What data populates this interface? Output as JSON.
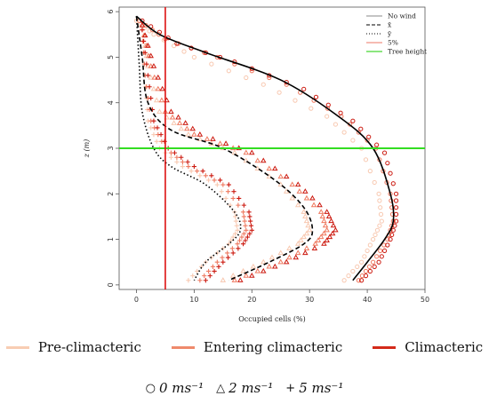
{
  "chart_data": {
    "type": "line",
    "xlabel": "Occupied cells (%)",
    "ylabel": "z (m)",
    "xlim": [
      -3,
      50
    ],
    "ylim": [
      -0.1,
      6.1
    ],
    "xticks": [
      "0",
      "10",
      "20",
      "30",
      "40",
      "50"
    ],
    "yticks": [
      "0",
      "1",
      "2",
      "3",
      "4",
      "5",
      "6"
    ],
    "reference_lines": [
      {
        "orientation": "horizontal",
        "value": 3,
        "label": "Tree height",
        "color": "#33dd22"
      },
      {
        "orientation": "vertical",
        "value": 5,
        "label": "5%",
        "color": "#dd1111"
      }
    ],
    "legend": [
      {
        "label": "No wind",
        "style": "solid",
        "color": "#888888"
      },
      {
        "label": "x̄",
        "style": "dashed",
        "color": "#000000"
      },
      {
        "label": "ȳ",
        "style": "dotted",
        "color": "#000000"
      },
      {
        "label": "5%",
        "style": "solid",
        "color": "#ee7766"
      },
      {
        "label": "Tree height",
        "style": "solid",
        "color": "#66dd55"
      }
    ],
    "legend_position": "top-right",
    "series": [
      {
        "wind": "0",
        "stage": "mean",
        "style": "solid",
        "color": "#000000",
        "x": [
          0,
          4,
          12,
          25,
          35,
          41,
          44,
          44.5,
          43,
          40,
          37.5
        ],
        "y": [
          5.9,
          5.5,
          5.1,
          4.5,
          3.7,
          3.0,
          2.0,
          1.4,
          1.0,
          0.5,
          0.1
        ]
      },
      {
        "wind": "2",
        "stage": "mean",
        "style": "dashed",
        "color": "#000000",
        "x": [
          0,
          1,
          2,
          6,
          15,
          24,
          29,
          30.5,
          29,
          23,
          16
        ],
        "y": [
          5.9,
          5.0,
          4.0,
          3.4,
          3.0,
          2.3,
          1.7,
          1.2,
          0.9,
          0.5,
          0.1
        ]
      },
      {
        "wind": "5",
        "stage": "mean",
        "style": "dotted",
        "color": "#000000",
        "x": [
          0,
          0.5,
          1,
          3,
          6,
          12,
          17,
          18,
          16,
          12,
          10
        ],
        "y": [
          5.9,
          4.8,
          3.8,
          3.0,
          2.6,
          2.2,
          1.6,
          1.2,
          0.9,
          0.5,
          0.1
        ]
      },
      {
        "wind": "0",
        "stage": "Pre-climacteric",
        "marker": "circle",
        "color": "#f8c8b0",
        "x": [
          0,
          3,
          10,
          22,
          33,
          39,
          42,
          42.5,
          41,
          39,
          36
        ],
        "y": [
          5.8,
          5.5,
          5.0,
          4.4,
          3.7,
          3.0,
          2.0,
          1.4,
          1.0,
          0.5,
          0.1
        ]
      },
      {
        "wind": "0",
        "stage": "Entering climacteric",
        "marker": "circle",
        "color": "#ef7a60",
        "x": [
          0.5,
          5,
          14,
          26,
          35.5,
          41.5,
          44,
          44.5,
          43.5,
          41,
          38.5
        ],
        "y": [
          5.8,
          5.4,
          5.0,
          4.4,
          3.7,
          3.0,
          2.0,
          1.4,
          1.0,
          0.5,
          0.1
        ]
      },
      {
        "wind": "0",
        "stage": "Climacteric",
        "marker": "circle",
        "color": "#cc1a10",
        "x": [
          1,
          7,
          17,
          29,
          37.5,
          43,
          45,
          45,
          44,
          42,
          39
        ],
        "y": [
          5.8,
          5.3,
          4.9,
          4.3,
          3.6,
          2.9,
          2.0,
          1.4,
          1.0,
          0.5,
          0.1
        ]
      },
      {
        "wind": "2",
        "stage": "Pre-climacteric",
        "marker": "triangle",
        "color": "#f8c8b0",
        "x": [
          1,
          2,
          4,
          9,
          17,
          25,
          29,
          30,
          28,
          22,
          15
        ],
        "y": [
          5.7,
          4.8,
          3.8,
          3.3,
          2.9,
          2.2,
          1.6,
          1.2,
          0.9,
          0.5,
          0.1
        ]
      },
      {
        "wind": "2",
        "stage": "Entering climacteric",
        "marker": "triangle",
        "color": "#ef7a60",
        "x": [
          1,
          2.5,
          5,
          10,
          19,
          27,
          32,
          33,
          31,
          25,
          17
        ],
        "y": [
          5.7,
          4.8,
          3.8,
          3.3,
          2.9,
          2.2,
          1.6,
          1.2,
          0.9,
          0.5,
          0.1
        ]
      },
      {
        "wind": "2",
        "stage": "Climacteric",
        "marker": "triangle",
        "color": "#cc1a10",
        "x": [
          1,
          3,
          6,
          11,
          20,
          28,
          33,
          34.5,
          32.5,
          26,
          18
        ],
        "y": [
          5.7,
          4.8,
          3.8,
          3.3,
          2.9,
          2.2,
          1.6,
          1.2,
          0.9,
          0.5,
          0.1
        ]
      },
      {
        "wind": "5",
        "stage": "Pre-climacteric",
        "marker": "plus",
        "color": "#f8c8b0",
        "x": [
          1,
          1.5,
          2,
          4,
          8,
          14,
          17,
          17.5,
          16,
          12,
          9
        ],
        "y": [
          5.6,
          4.6,
          3.6,
          3.0,
          2.6,
          2.2,
          1.6,
          1.2,
          0.9,
          0.5,
          0.1
        ]
      },
      {
        "wind": "5",
        "stage": "Entering climacteric",
        "marker": "plus",
        "color": "#ef7a60",
        "x": [
          1,
          1.5,
          2.5,
          5,
          9,
          15,
          18.5,
          19,
          17.5,
          14,
          11
        ],
        "y": [
          5.6,
          4.6,
          3.6,
          3.0,
          2.6,
          2.2,
          1.6,
          1.2,
          0.9,
          0.5,
          0.1
        ]
      },
      {
        "wind": "5",
        "stage": "Climacteric",
        "marker": "plus",
        "color": "#cc1a10",
        "x": [
          1,
          2,
          3,
          5.5,
          10,
          16,
          19.5,
          20,
          18.5,
          15,
          12
        ],
        "y": [
          5.6,
          4.6,
          3.6,
          3.0,
          2.6,
          2.2,
          1.6,
          1.2,
          0.9,
          0.5,
          0.1
        ]
      }
    ]
  },
  "stage_legend": [
    {
      "label": "Pre-climacteric",
      "color": "#f8cdb3"
    },
    {
      "label": "Entering climacteric",
      "color": "#ef8a6c"
    },
    {
      "label": "Climacteric",
      "color": "#d42a1a"
    }
  ],
  "wind_legend": [
    {
      "symbol": "○",
      "label": "0 ms⁻¹"
    },
    {
      "symbol": "△",
      "label": "2 ms⁻¹"
    },
    {
      "symbol": "+",
      "label": "5 ms⁻¹"
    }
  ]
}
